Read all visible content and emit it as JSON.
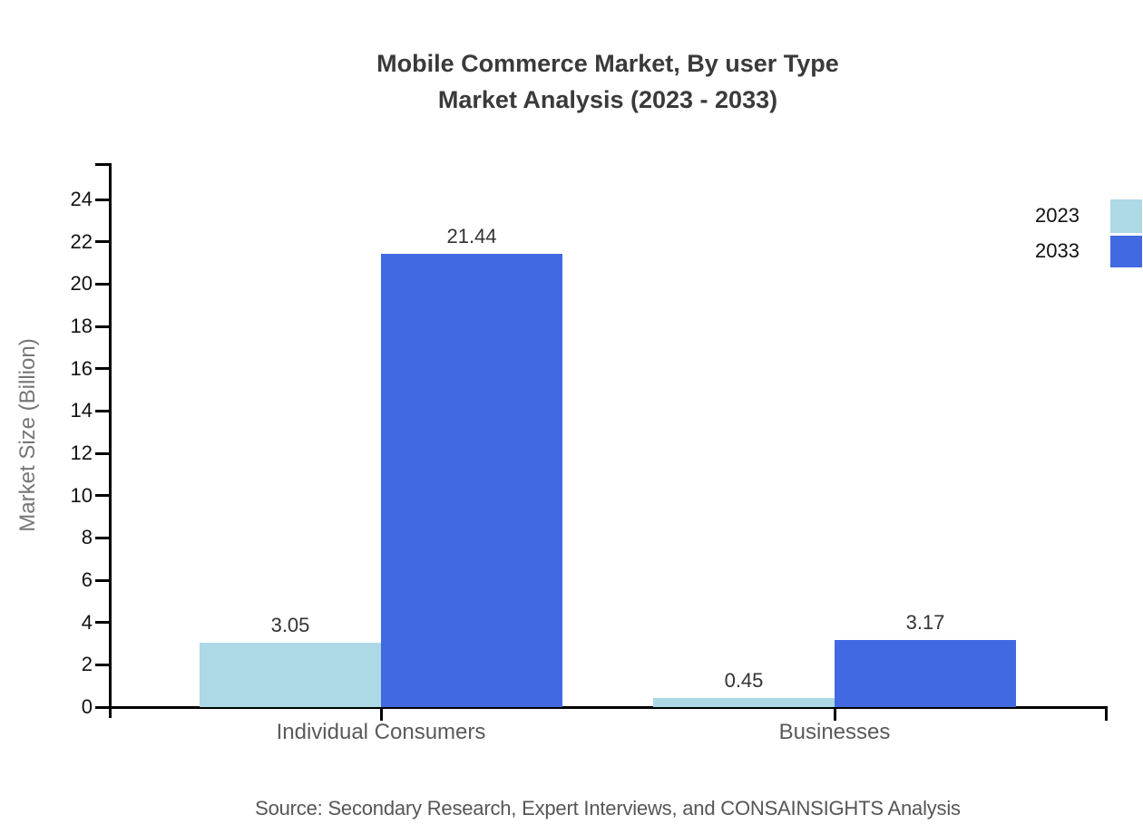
{
  "title": {
    "line1": "Mobile Commerce Market, By user Type",
    "line2": "Market Analysis (2023 - 2033)"
  },
  "source": "Source: Secondary Research, Expert Interviews, and CONSAINSIGHTS Analysis",
  "legend": {
    "position": "top-right",
    "items": [
      {
        "label": "2023",
        "color": "#add8e6"
      },
      {
        "label": "2033",
        "color": "#4169e1"
      }
    ]
  },
  "chart_data": {
    "type": "bar",
    "title": "Mobile Commerce Market, By user Type Market Analysis (2023 - 2033)",
    "categories": [
      "Individual Consumers",
      "Businesses"
    ],
    "series": [
      {
        "name": "2023",
        "color": "#add8e6",
        "values": [
          3.05,
          0.45
        ]
      },
      {
        "name": "2033",
        "color": "#4169e1",
        "values": [
          21.44,
          3.17
        ]
      }
    ],
    "xlabel": "",
    "ylabel": "Market Size (Billion)",
    "ylim": [
      0,
      25.7
    ],
    "yticks": [
      0,
      2,
      4,
      6,
      8,
      10,
      12,
      14,
      16,
      18,
      20,
      22,
      24
    ],
    "value_labels": [
      [
        "3.05",
        "0.45"
      ],
      [
        "21.44",
        "3.17"
      ]
    ],
    "grid": false,
    "legend_position": "top-right",
    "axis_color": "#000000",
    "background_color": "#ffffff"
  }
}
